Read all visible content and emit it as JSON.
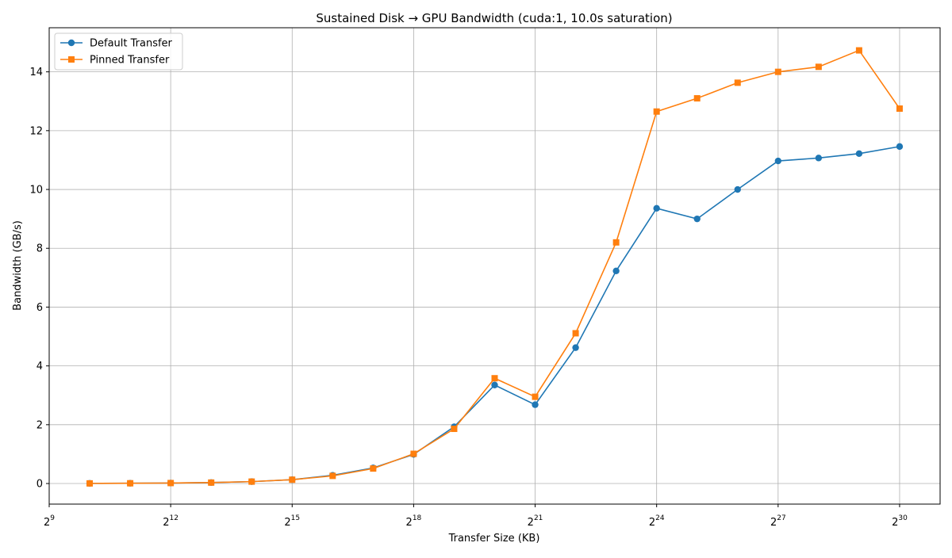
{
  "chart_data": {
    "type": "line",
    "title": "Sustained Disk → GPU Bandwidth (cuda:1, 10.0s saturation)",
    "xlabel": "Transfer Size (KB)",
    "ylabel": "Bandwidth (GB/s)",
    "x_scale": "log2",
    "xlim": [
      512,
      2147483648
    ],
    "ylim": [
      -0.7,
      15.5
    ],
    "grid": true,
    "legend_position": "upper-left",
    "x_ticks": [
      {
        "value": 512,
        "base": "2",
        "exp": "9"
      },
      {
        "value": 4096,
        "base": "2",
        "exp": "12"
      },
      {
        "value": 32768,
        "base": "2",
        "exp": "15"
      },
      {
        "value": 262144,
        "base": "2",
        "exp": "18"
      },
      {
        "value": 2097152,
        "base": "2",
        "exp": "21"
      },
      {
        "value": 16777216,
        "base": "2",
        "exp": "24"
      },
      {
        "value": 134217728,
        "base": "2",
        "exp": "27"
      },
      {
        "value": 1073741824,
        "base": "2",
        "exp": "30"
      }
    ],
    "y_ticks": [
      {
        "value": 0,
        "label": "0"
      },
      {
        "value": 2,
        "label": "2"
      },
      {
        "value": 4,
        "label": "4"
      },
      {
        "value": 6,
        "label": "6"
      },
      {
        "value": 8,
        "label": "8"
      },
      {
        "value": 10,
        "label": "10"
      },
      {
        "value": 12,
        "label": "12"
      },
      {
        "value": 14,
        "label": "14"
      }
    ],
    "x": [
      1024,
      2048,
      4096,
      8192,
      16384,
      32768,
      65536,
      131072,
      262144,
      524288,
      1048576,
      2097152,
      4194304,
      8388608,
      16777216,
      33554432,
      67108864,
      134217728,
      268435456,
      536870912,
      1073741824
    ],
    "series": [
      {
        "name": "Default Transfer",
        "color": "#1f77b4",
        "marker": "circle",
        "values": [
          0.004,
          0.008,
          0.016,
          0.032,
          0.065,
          0.13,
          0.28,
          0.53,
          0.99,
          1.93,
          3.35,
          2.68,
          4.62,
          7.23,
          9.36,
          9.0,
          10.0,
          10.97,
          11.07,
          11.22,
          11.46
        ]
      },
      {
        "name": "Pinned Transfer",
        "color": "#ff7f0e",
        "marker": "square",
        "values": [
          0.004,
          0.008,
          0.016,
          0.032,
          0.065,
          0.13,
          0.26,
          0.51,
          1.01,
          1.86,
          3.58,
          2.95,
          5.11,
          8.2,
          12.65,
          13.1,
          13.63,
          14.0,
          14.17,
          14.73,
          12.75
        ]
      }
    ]
  }
}
